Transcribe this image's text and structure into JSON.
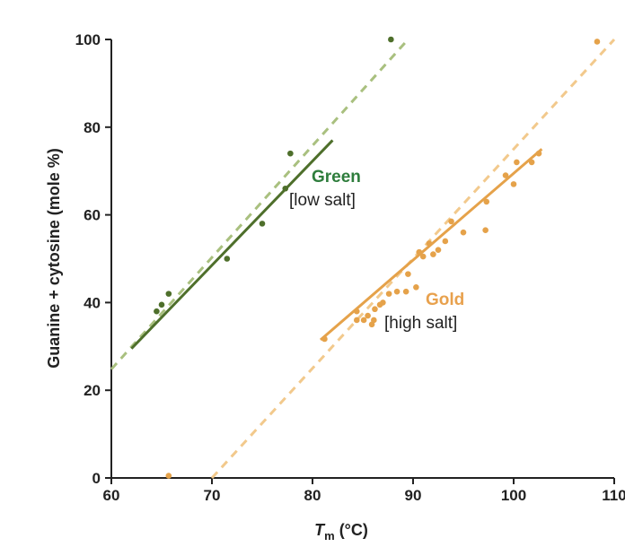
{
  "chart_data": {
    "type": "scatter",
    "xlabel_main": "T",
    "xlabel_sub": "m",
    "xlabel_unit": " (°C)",
    "ylabel": "Guanine + cytosine (mole %)",
    "xlim": [
      60,
      110
    ],
    "ylim": [
      0,
      100
    ],
    "xticks": [
      60,
      70,
      80,
      90,
      100,
      110
    ],
    "yticks": [
      0,
      20,
      40,
      60,
      80,
      100
    ],
    "grid": false,
    "series": [
      {
        "name": "Green",
        "annotation": "[low salt]",
        "color": "#4e6f2b",
        "name_color": "#2e7d3c",
        "trend_dashed_color": "#a9c07f",
        "points": [
          [
            64.5,
            38
          ],
          [
            65,
            39.5
          ],
          [
            65.7,
            42
          ],
          [
            71.5,
            50
          ],
          [
            75,
            58
          ],
          [
            77.3,
            66
          ],
          [
            77.8,
            74
          ],
          [
            87.8,
            100
          ]
        ],
        "fit": {
          "solid": [
            [
              62,
              29.5
            ],
            [
              82,
              77
            ]
          ],
          "dashed_start": [
            60,
            24.8
          ],
          "dashed_end": [
            89.5,
            100
          ]
        }
      },
      {
        "name": "Gold",
        "annotation": "[high salt]",
        "color": "#e5a24a",
        "name_color": "#e8a14d",
        "trend_dashed_color": "#f2c98c",
        "points": [
          [
            65.7,
            0.5
          ],
          [
            81.2,
            31.7
          ],
          [
            84.4,
            38
          ],
          [
            84.4,
            36
          ],
          [
            85.1,
            36
          ],
          [
            85.5,
            37
          ],
          [
            85.9,
            35
          ],
          [
            86.1,
            36
          ],
          [
            86.2,
            38.5
          ],
          [
            86.7,
            39.5
          ],
          [
            87,
            40
          ],
          [
            87.6,
            42
          ],
          [
            88.4,
            42.5
          ],
          [
            89.3,
            42.5
          ],
          [
            89.5,
            46.5
          ],
          [
            90.3,
            43.5
          ],
          [
            90.6,
            51.5
          ],
          [
            91,
            50.5
          ],
          [
            91.6,
            53.5
          ],
          [
            92,
            51
          ],
          [
            92.5,
            52
          ],
          [
            93.2,
            54
          ],
          [
            93.8,
            58.5
          ],
          [
            95,
            56
          ],
          [
            97.2,
            56.5
          ],
          [
            97.3,
            63
          ],
          [
            99.2,
            69
          ],
          [
            100,
            67
          ],
          [
            100.3,
            72
          ],
          [
            101.8,
            72
          ],
          [
            102.5,
            74
          ],
          [
            108.3,
            99.5
          ]
        ],
        "fit": {
          "solid": [
            [
              80.8,
              31.5
            ],
            [
              102.8,
              75
            ]
          ],
          "dashed_start": [
            70,
            0
          ],
          "dashed_end": [
            110,
            100
          ]
        }
      }
    ]
  }
}
